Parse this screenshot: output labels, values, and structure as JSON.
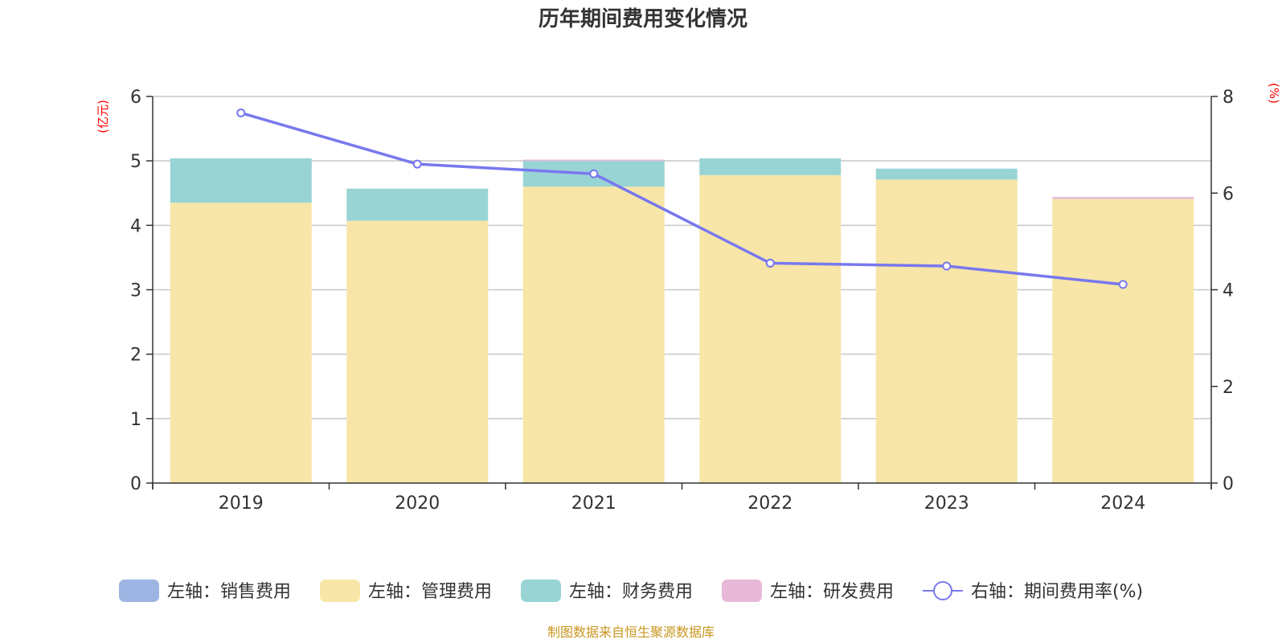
{
  "chart_data": {
    "type": "bar",
    "title": "历年期间费用变化情况",
    "categories": [
      "2019",
      "2020",
      "2021",
      "2022",
      "2023",
      "2024"
    ],
    "left_axis": {
      "unit": "(亿元)",
      "ylim": [
        0,
        6
      ],
      "ticks": [
        "0",
        "1",
        "2",
        "3",
        "4",
        "5",
        "6"
      ]
    },
    "right_axis": {
      "unit": "(%)",
      "ylim": [
        0,
        8
      ],
      "ticks": [
        "0",
        "2",
        "4",
        "6",
        "8"
      ]
    },
    "series": [
      {
        "name": "左轴：销售费用",
        "axis": "left",
        "stack": true,
        "color": "#9db5e2",
        "values": [
          0.0,
          0.0,
          0.0,
          0.0,
          0.0,
          0.0
        ]
      },
      {
        "name": "左轴：管理费用",
        "axis": "left",
        "stack": true,
        "color": "#f7e6a8",
        "values": [
          4.35,
          4.07,
          4.6,
          4.78,
          4.71,
          4.41
        ]
      },
      {
        "name": "左轴：财务费用",
        "axis": "left",
        "stack": true,
        "color": "#99d4d4",
        "values": [
          0.69,
          0.5,
          0.4,
          0.26,
          0.17,
          0.0
        ]
      },
      {
        "name": "左轴：研发费用",
        "axis": "left",
        "stack": true,
        "color": "#e8b8d9",
        "values": [
          0.0,
          0.0,
          0.02,
          0.0,
          0.0,
          0.03
        ]
      },
      {
        "name": "右轴：期间费用率(%)",
        "axis": "right",
        "type": "line",
        "color": "#7878ee",
        "values": [
          7.66,
          6.6,
          6.4,
          4.55,
          4.49,
          4.11
        ]
      }
    ],
    "legend_position": "bottom",
    "grid": true
  },
  "source_note": "制图数据来自恒生聚源数据库"
}
